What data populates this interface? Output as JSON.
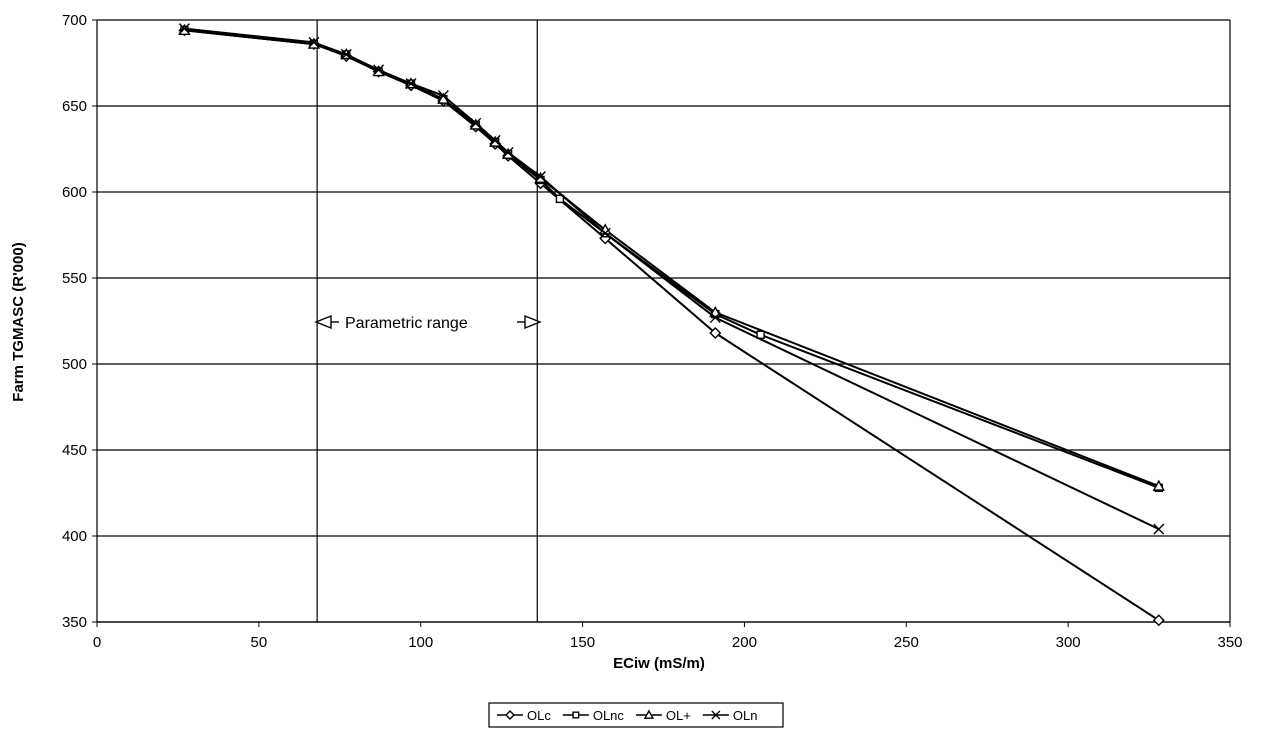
{
  "chart_data": {
    "type": "line",
    "title": "",
    "xlabel": "ECiw (mS/m)",
    "ylabel": "Farm TGMASC (R'000)",
    "xlim": [
      0,
      350
    ],
    "ylim": [
      350,
      700
    ],
    "x_ticks": [
      "0",
      "50",
      "100",
      "150",
      "200",
      "250",
      "300",
      "350"
    ],
    "y_ticks": [
      "350",
      "400",
      "450",
      "500",
      "550",
      "600",
      "650",
      "700"
    ],
    "grid": "horizontal",
    "legend_position": "bottom",
    "vertical_lines": [
      68,
      136
    ],
    "annotation": {
      "text": "Parametric range",
      "y": 524
    },
    "series": [
      {
        "name": "OLc",
        "marker": "diamond",
        "x": [
          27,
          67,
          77,
          87,
          97,
          107,
          117,
          123,
          127,
          137,
          157,
          191,
          328
        ],
        "y": [
          694,
          686,
          679,
          670,
          662,
          653,
          638,
          628,
          621,
          605,
          573,
          518,
          351
        ]
      },
      {
        "name": "OLnc",
        "marker": "square",
        "x": [
          27,
          67,
          77,
          87,
          97,
          107,
          117,
          123,
          127,
          137,
          143,
          157,
          191,
          205,
          328
        ],
        "y": [
          694,
          686,
          680,
          670,
          663,
          654,
          639,
          629,
          622,
          607,
          596,
          576,
          529,
          517,
          428
        ]
      },
      {
        "name": "OL+",
        "marker": "triangle",
        "x": [
          27,
          67,
          77,
          87,
          97,
          107,
          117,
          123,
          127,
          137,
          157,
          191,
          328
        ],
        "y": [
          694,
          686,
          680,
          670,
          663,
          654,
          639,
          629,
          622,
          608,
          578,
          530,
          429
        ]
      },
      {
        "name": "OLn",
        "marker": "x",
        "x": [
          27,
          67,
          77,
          87,
          97,
          107,
          117,
          123,
          127,
          137,
          157,
          191,
          328
        ],
        "y": [
          695,
          687,
          680,
          671,
          663,
          656,
          640,
          630,
          623,
          609,
          576,
          527,
          404
        ]
      }
    ]
  }
}
